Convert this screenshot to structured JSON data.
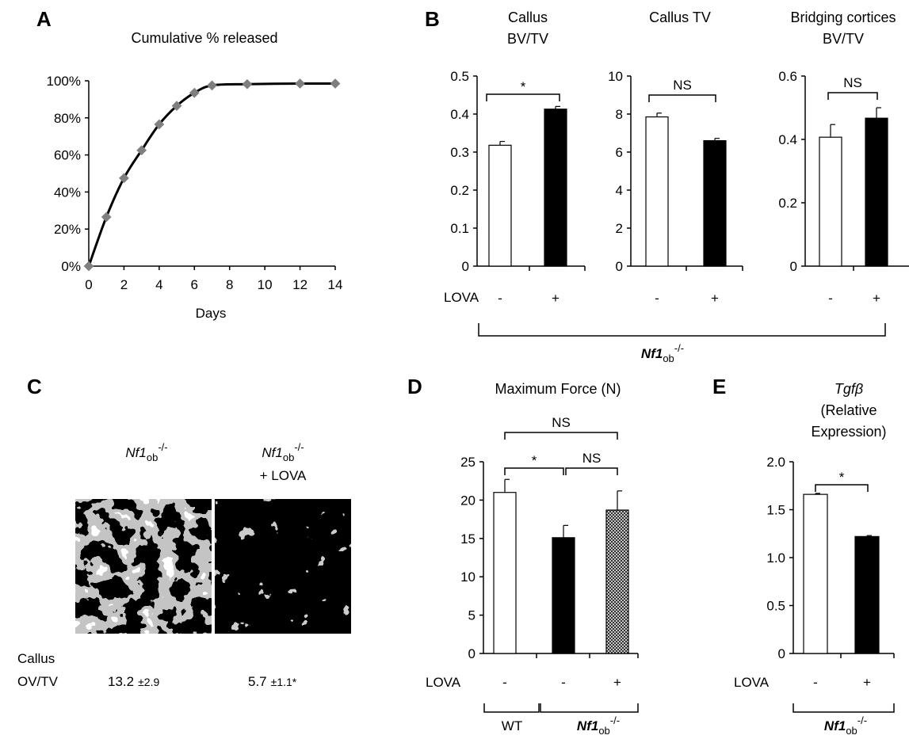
{
  "panels": {
    "A": "A",
    "B": "B",
    "C": "C",
    "D": "D",
    "E": "E"
  },
  "common": {
    "lova": "LOVA",
    "minus": "-",
    "plus": "+",
    "ns": "NS",
    "star": "*",
    "nf1_pre": "Nf1",
    "nf1_sub": "ob",
    "nf1_sup": "-/-",
    "wt": "WT"
  },
  "imaging": {
    "label1_pre": "Nf1",
    "label1_sub": "ob",
    "label1_sup": "-/-",
    "label2_line1_pre": "Nf1",
    "label2_line1_sub": "ob",
    "label2_line1_sup": "-/-",
    "label2_line2": "+ LOVA",
    "metric_line1": "Callus",
    "metric_line2": "OV/TV",
    "value1": "13.2",
    "sd1": "±2.9",
    "value2": "5.7",
    "sd2": "±1.1*"
  },
  "chart_data": [
    {
      "panel": "A",
      "type": "line",
      "title": "Cumulative % released",
      "xlabel": "Days",
      "ylabel": "",
      "x": [
        0,
        1,
        2,
        3,
        4,
        5,
        6,
        7,
        9,
        12,
        14
      ],
      "y": [
        0,
        26.5,
        47.5,
        62.5,
        76.5,
        86.5,
        93.5,
        97.5,
        98.2,
        98.5,
        98.5
      ],
      "xlim": [
        0,
        14
      ],
      "ylim": [
        0,
        100
      ],
      "xticks": [
        "0",
        "2",
        "4",
        "6",
        "8",
        "10",
        "12",
        "14"
      ],
      "yticks": [
        "0%",
        "20%",
        "40%",
        "60%",
        "80%",
        "100%"
      ],
      "marker_color": "#7f7f7f",
      "line_color": "#000000"
    },
    {
      "panel": "B1",
      "type": "bar",
      "title_lines": [
        "Callus",
        "BV/TV"
      ],
      "categories": [
        "-",
        "+"
      ],
      "values": [
        0.318,
        0.413
      ],
      "errors": [
        0.01,
        0.007
      ],
      "fills": [
        "#ffffff",
        "#000000"
      ],
      "ylim": [
        0,
        0.5
      ],
      "yticks": [
        "0",
        "0.1",
        "0.2",
        "0.3",
        "0.4",
        "0.5"
      ],
      "significance": "*"
    },
    {
      "panel": "B2",
      "type": "bar",
      "title_lines": [
        "Callus TV"
      ],
      "categories": [
        "-",
        "+"
      ],
      "values": [
        7.85,
        6.6
      ],
      "errors": [
        0.2,
        0.12
      ],
      "fills": [
        "#ffffff",
        "#000000"
      ],
      "ylim": [
        0,
        10
      ],
      "yticks": [
        "0",
        "2",
        "4",
        "6",
        "8",
        "10"
      ],
      "significance": "NS"
    },
    {
      "panel": "B3",
      "type": "bar",
      "title_lines": [
        "Bridging cortices",
        "BV/TV"
      ],
      "categories": [
        "-",
        "+"
      ],
      "values": [
        0.407,
        0.467
      ],
      "errors": [
        0.04,
        0.033
      ],
      "fills": [
        "#ffffff",
        "#000000"
      ],
      "ylim": [
        0,
        0.6
      ],
      "yticks": [
        "0",
        "0.2",
        "0.4",
        "0.6"
      ],
      "significance": "NS"
    },
    {
      "panel": "D",
      "type": "bar",
      "title_lines": [
        "Maximum Force (N)"
      ],
      "categories": [
        "-",
        "-",
        "+"
      ],
      "values": [
        21.0,
        15.1,
        18.7
      ],
      "errors": [
        1.7,
        1.6,
        2.5
      ],
      "fills": [
        "#ffffff",
        "#000000",
        "hatch"
      ],
      "ylim": [
        0,
        25
      ],
      "yticks": [
        "0",
        "5",
        "10",
        "15",
        "20",
        "25"
      ],
      "brackets": [
        "*",
        "NS",
        "NS"
      ]
    },
    {
      "panel": "E",
      "type": "bar",
      "title_lines": [
        "Tgfβ",
        "(Relative",
        "Expression)"
      ],
      "categories": [
        "-",
        "+"
      ],
      "values": [
        1.66,
        1.22
      ],
      "errors": [
        0.01,
        0.01
      ],
      "fills": [
        "#ffffff",
        "#000000"
      ],
      "ylim": [
        0,
        2.0
      ],
      "yticks": [
        "0",
        "0.5",
        "1.0",
        "1.5",
        "2.0"
      ],
      "significance": "*"
    }
  ]
}
